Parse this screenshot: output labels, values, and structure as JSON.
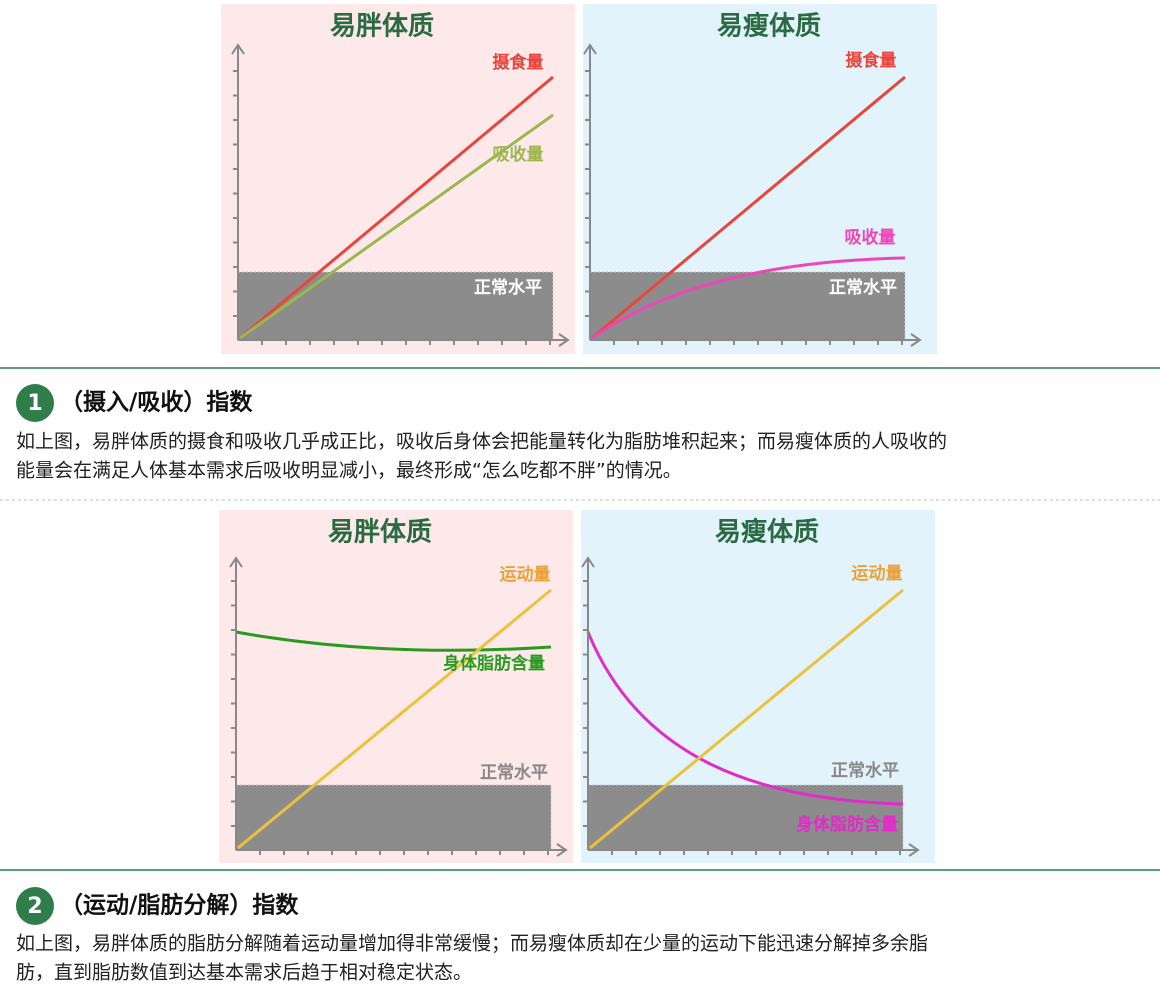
{
  "figures": [
    {
      "panels": [
        {
          "title": "易胖体质",
          "labels": [
            "摄食量",
            "吸收量",
            "正常水平"
          ]
        },
        {
          "title": "易瘦体质",
          "labels": [
            "摄食量",
            "吸收量",
            "正常水平"
          ]
        }
      ]
    },
    {
      "panels": [
        {
          "title": "易胖体质",
          "labels": [
            "运动量",
            "身体脂肪含量",
            "正常水平"
          ]
        },
        {
          "title": "易瘦体质",
          "labels": [
            "运动量",
            "正常水平",
            "身体脂肪含量"
          ]
        }
      ]
    }
  ],
  "sections": [
    {
      "number": "1",
      "heading": "（摄入/吸收）指数",
      "lines": [
        "如上图，易胖体质的摄食和吸收几乎成正比，吸收后身体会把能量转化为脂肪堆积起来；而易瘦体质的人吸收的",
        "能量会在满足人体基本需求后吸收明显减小，最终形成“怎么吃都不胖”的情况。"
      ]
    },
    {
      "number": "2",
      "heading": "（运动/脂肪分解）指数",
      "lines": [
        "如上图，易胖体质的脂肪分解随着运动量增加得非常缓慢；而易瘦体质却在少量的运动下能迅速分解掉多余脂",
        "肪，直到脂肪数值到达基本需求后趋于相对稳定状态。"
      ]
    }
  ]
}
